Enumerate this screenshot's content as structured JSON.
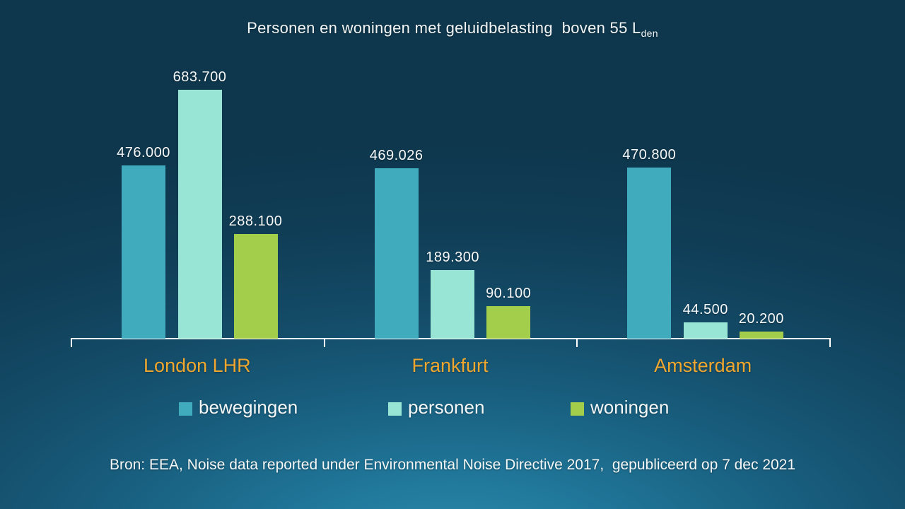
{
  "slide": {
    "source_note": "Bron: EEA, Noise data reported under Environmental Noise Directive 2017,  gepubliceerd op 7 dec 2021"
  },
  "chart_data": {
    "type": "bar",
    "title_full": "Personen en woningen met geluidbelasting boven 55 Lden",
    "title_main": "Personen en woningen met geluidbelasting  boven 55 L",
    "title_sub": "den",
    "categories": [
      "London LHR",
      "Frankfurt",
      "Amsterdam"
    ],
    "series": [
      {
        "name": "bewegingen",
        "color": "#3fabbc",
        "values": [
          476000,
          469026,
          470800
        ],
        "labels": [
          "476.000",
          "469.026",
          "470.800"
        ]
      },
      {
        "name": "personen",
        "color": "#98e5d6",
        "values": [
          683700,
          189300,
          44500
        ],
        "labels": [
          "683.700",
          "189.300",
          "44.500"
        ]
      },
      {
        "name": "woningen",
        "color": "#a2ce4b",
        "values": [
          288100,
          90100,
          20200
        ],
        "labels": [
          "288.100",
          "90.100",
          "20.200"
        ]
      }
    ],
    "ylim": [
      0,
      683700
    ],
    "grid": false,
    "y_axis_visible": false,
    "legend_position": "bottom",
    "category_label_color": "#efa72f",
    "axis_color": "#ffffff",
    "data_label_color": "#ffffff",
    "background_top_color": "#0f384e",
    "background_bottom_color": "#2b8cab"
  }
}
